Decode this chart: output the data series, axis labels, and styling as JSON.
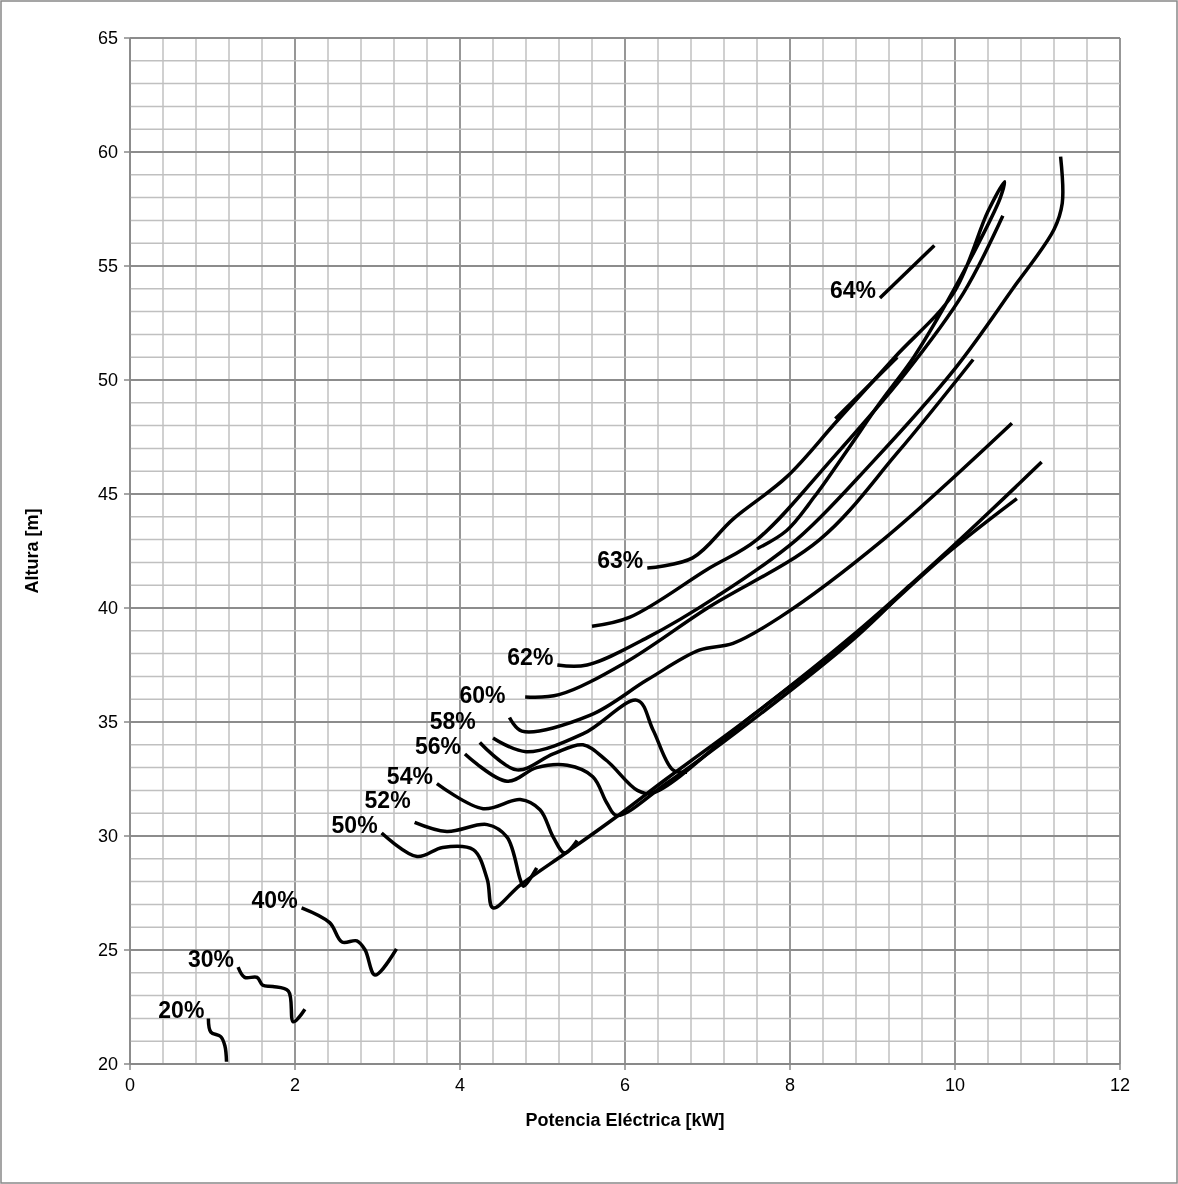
{
  "chart_data": {
    "type": "line",
    "xlabel": "Potencia Eléctrica [kW]",
    "ylabel": "Altura [m]",
    "xlim": [
      0,
      12
    ],
    "ylim": [
      20,
      65
    ],
    "xticks": [
      0,
      {
        "value": 0.4,
        "label": null
      },
      {
        "value": 0.8,
        "label": null
      },
      {
        "value": 1.2,
        "label": null
      },
      {
        "value": 1.6,
        "label": null
      },
      2,
      {
        "value": 2.4,
        "label": null
      },
      {
        "value": 2.8,
        "label": null
      },
      {
        "value": 3.2,
        "label": null
      },
      {
        "value": 3.6,
        "label": null
      },
      4,
      {
        "value": 4.4,
        "label": null
      },
      {
        "value": 4.8,
        "label": null
      },
      {
        "value": 5.2,
        "label": null
      },
      {
        "value": 5.6,
        "label": null
      },
      6,
      {
        "value": 6.4,
        "label": null
      },
      {
        "value": 6.8,
        "label": null
      },
      {
        "value": 7.2,
        "label": null
      },
      {
        "value": 7.6,
        "label": null
      },
      8,
      {
        "value": 8.4,
        "label": null
      },
      {
        "value": 8.8,
        "label": null
      },
      {
        "value": 9.2,
        "label": null
      },
      {
        "value": 9.6,
        "label": null
      },
      10,
      {
        "value": 10.4,
        "label": null
      },
      {
        "value": 10.8,
        "label": null
      },
      {
        "value": 11.2,
        "label": null
      },
      {
        "value": 11.6,
        "label": null
      },
      12
    ],
    "yticks": [
      20,
      {
        "value": 21,
        "label": null
      },
      {
        "value": 22,
        "label": null
      },
      {
        "value": 23,
        "label": null
      },
      {
        "value": 24,
        "label": null
      },
      25,
      {
        "value": 26,
        "label": null
      },
      {
        "value": 27,
        "label": null
      },
      {
        "value": 28,
        "label": null
      },
      {
        "value": 29,
        "label": null
      },
      30,
      {
        "value": 31,
        "label": null
      },
      {
        "value": 32,
        "label": null
      },
      {
        "value": 33,
        "label": null
      },
      {
        "value": 34,
        "label": null
      },
      35,
      {
        "value": 36,
        "label": null
      },
      {
        "value": 37,
        "label": null
      },
      {
        "value": 38,
        "label": null
      },
      {
        "value": 39,
        "label": null
      },
      40,
      {
        "value": 41,
        "label": null
      },
      {
        "value": 42,
        "label": null
      },
      {
        "value": 43,
        "label": null
      },
      {
        "value": 44,
        "label": null
      },
      45,
      {
        "value": 46,
        "label": null
      },
      {
        "value": 47,
        "label": null
      },
      {
        "value": 48,
        "label": null
      },
      {
        "value": 49,
        "label": null
      },
      50,
      {
        "value": 51,
        "label": null
      },
      {
        "value": 52,
        "label": null
      },
      {
        "value": 53,
        "label": null
      },
      {
        "value": 54,
        "label": null
      },
      55,
      {
        "value": 56,
        "label": null
      },
      {
        "value": 57,
        "label": null
      },
      {
        "value": 58,
        "label": null
      },
      {
        "value": 59,
        "label": null
      },
      60,
      {
        "value": 61,
        "label": null
      },
      {
        "value": 62,
        "label": null
      },
      {
        "value": 63,
        "label": null
      },
      {
        "value": 64,
        "label": null
      },
      65
    ],
    "grid": true,
    "series": [
      {
        "name": "20%",
        "color": "#000000",
        "x": [
          0.95,
          0.98,
          1.1,
          1.15,
          1.17
        ],
        "values": [
          22.0,
          21.4,
          21.2,
          20.8,
          20.1
        ]
      },
      {
        "name": "30%",
        "color": "#000000",
        "x": [
          1.31,
          1.39,
          1.54,
          1.61,
          1.73,
          1.92,
          1.98,
          2.12
        ],
        "values": [
          24.25,
          23.8,
          23.8,
          23.45,
          23.4,
          23.2,
          21.85,
          22.4
        ]
      },
      {
        "name": "40%",
        "color": "#000000",
        "x": [
          2.08,
          2.42,
          2.57,
          2.75,
          2.85,
          2.97,
          3.23
        ],
        "values": [
          26.85,
          26.2,
          25.35,
          25.4,
          25.0,
          23.9,
          25.05
        ]
      },
      {
        "name": "50%",
        "color": "#000000",
        "x": [
          3.05,
          3.48,
          3.79,
          4.16,
          4.33,
          4.4,
          4.73,
          5.3,
          5.88,
          6.5,
          7.55,
          8.76,
          9.94,
          11.05
        ],
        "values": [
          30.13,
          29.1,
          29.5,
          29.4,
          28.1,
          26.85,
          27.85,
          29.3,
          30.8,
          32.5,
          35.3,
          38.8,
          42.6,
          46.4
        ]
      },
      {
        "name": "52%",
        "color": "#000000",
        "x": [
          3.45,
          3.84,
          4.33,
          4.57,
          4.73,
          4.77,
          4.93
        ],
        "values": [
          30.6,
          30.2,
          30.5,
          29.95,
          28.1,
          27.8,
          28.6
        ]
      },
      {
        "name": "54%",
        "color": "#000000",
        "x": [
          3.72,
          4.28,
          4.73,
          4.97,
          5.13,
          5.27,
          5.42
        ],
        "values": [
          32.3,
          31.2,
          31.6,
          31.15,
          29.95,
          29.25,
          29.8
        ]
      },
      {
        "name": "56%",
        "color": "#000000",
        "x": [
          4.06,
          4.57,
          4.93,
          5.3,
          5.61,
          5.78,
          5.9,
          6.5,
          7.55,
          8.76,
          9.45
        ],
        "values": [
          33.6,
          32.4,
          33.0,
          33.1,
          32.6,
          31.45,
          30.9,
          32.3,
          35.1,
          38.6,
          41.0
        ]
      },
      {
        "name": "58%",
        "color": "#000000",
        "x": [
          4.24,
          4.69,
          5.13,
          5.49,
          5.78,
          6.15,
          6.34,
          7.55,
          8.76,
          9.94,
          10.75
        ],
        "values": [
          34.1,
          32.9,
          33.6,
          34.0,
          33.3,
          32.0,
          31.9,
          35.3,
          38.7,
          42.5,
          44.8
        ]
      },
      {
        "color": "#000000",
        "x": [
          4.4,
          4.8,
          5.5,
          6.15,
          6.34,
          6.58,
          6.75
        ],
        "values": [
          34.3,
          33.7,
          34.5,
          35.95,
          34.65,
          32.9,
          32.8
        ]
      },
      {
        "name": "60%",
        "color": "#000000",
        "x": [
          4.6,
          4.75,
          5.58,
          6.27,
          6.9,
          7.31,
          7.88,
          9.13,
          10.69
        ],
        "values": [
          35.2,
          34.6,
          35.3,
          36.85,
          38.15,
          38.45,
          39.6,
          43.0,
          48.1
        ]
      },
      {
        "color": "#000000",
        "x": [
          4.79,
          5.2,
          6.0,
          7.0,
          8.36,
          9.3,
          10.22
        ],
        "values": [
          36.1,
          36.2,
          37.6,
          40.0,
          43.0,
          46.8,
          50.9
        ]
      },
      {
        "name": "62%",
        "color": "#000000",
        "x": [
          5.18,
          5.54,
          6.27,
          7.11,
          8.08,
          9.0,
          10.0,
          10.7,
          11.2,
          11.3,
          11.28
        ],
        "values": [
          37.5,
          37.5,
          38.7,
          40.5,
          43.0,
          46.4,
          50.5,
          54.0,
          56.6,
          57.75,
          59.8
        ]
      },
      {
        "color": "#000000",
        "x": [
          5.6,
          6.06,
          7.0,
          7.6,
          8.5,
          9.4,
          10.1,
          10.58
        ],
        "values": [
          39.2,
          39.6,
          41.7,
          43.0,
          46.5,
          50.3,
          53.8,
          57.2
        ]
      },
      {
        "name": "63%",
        "color": "#000000",
        "x": [
          6.27,
          6.82,
          7.31,
          7.96,
          8.57,
          9.27,
          9.98,
          10.4,
          10.6,
          10.55,
          10.3,
          9.9,
          9.5,
          9.09,
          8.69,
          8.3,
          7.96,
          7.6
        ],
        "values": [
          41.75,
          42.2,
          43.9,
          45.75,
          48.2,
          51.0,
          53.8,
          57.4,
          58.7,
          58.0,
          56.1,
          53.4,
          51.0,
          49.0,
          46.9,
          44.9,
          43.4,
          42.6
        ]
      },
      {
        "name": "64%",
        "color": "#000000",
        "x": [
          9.09,
          9.75
        ],
        "values": [
          53.6,
          55.9
        ]
      },
      {
        "color": "#000000",
        "x": [
          8.55,
          9.3
        ],
        "values": [
          48.3,
          51.0
        ]
      }
    ]
  }
}
